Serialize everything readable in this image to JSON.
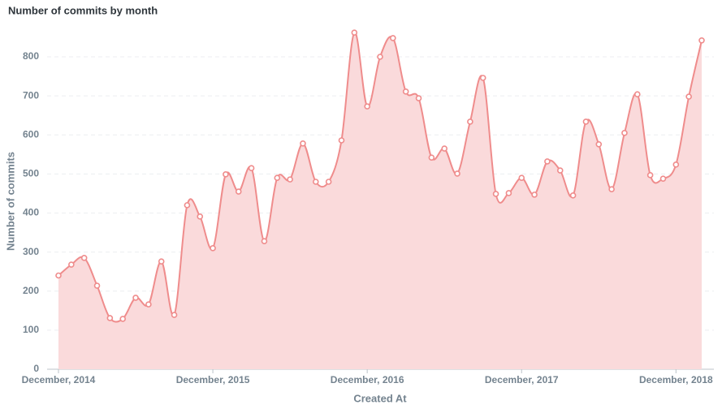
{
  "chart_data": {
    "type": "area",
    "title": "Number of commits by month",
    "x_label": "Created At",
    "y_label": "Number of commits",
    "categories": [
      "December, 2014",
      null,
      null,
      null,
      null,
      null,
      null,
      null,
      null,
      null,
      null,
      null,
      "December, 2015",
      null,
      null,
      null,
      null,
      null,
      null,
      null,
      null,
      null,
      null,
      null,
      "December, 2016",
      null,
      null,
      null,
      null,
      null,
      null,
      null,
      null,
      null,
      null,
      null,
      "December, 2017",
      null,
      null,
      null,
      null,
      null,
      null,
      null,
      null,
      null,
      null,
      null,
      "December, 2018",
      null,
      null
    ],
    "series": [
      {
        "name": "Number of commits",
        "color": "#ef8c8c",
        "fill": "#fadadb",
        "values": [
          240,
          268,
          285,
          214,
          131,
          129,
          183,
          166,
          276,
          139,
          420,
          391,
          310,
          499,
          455,
          515,
          328,
          490,
          486,
          578,
          480,
          480,
          586,
          862,
          673,
          800,
          848,
          711,
          694,
          542,
          565,
          501,
          634,
          746,
          449,
          451,
          490,
          447,
          532,
          509,
          445,
          634,
          576,
          461,
          605,
          704,
          497,
          488,
          524,
          698,
          842
        ]
      }
    ],
    "ylim": [
      0,
      880
    ],
    "yticks": [
      0,
      100,
      200,
      300,
      400,
      500,
      600,
      700,
      800
    ],
    "grid": true
  }
}
